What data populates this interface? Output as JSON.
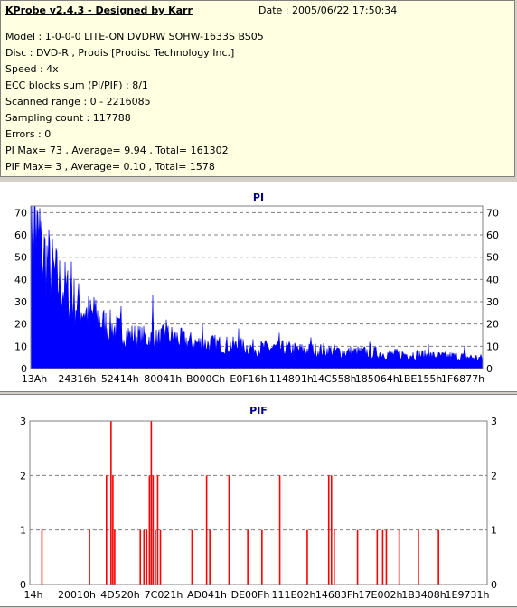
{
  "header": {
    "title": "KProbe v2.4.3 - Designed by Karr",
    "date": "Date : 2005/06/22 17:50:34"
  },
  "info_lines": [
    "Model : 1-0-0-0 LITE-ON DVDRW SOHW-1633S BS05",
    "Disc : DVD-R , Prodis [Prodisc Technology Inc.]",
    "Speed : 4x",
    "ECC blocks sum (PI/PIF) : 8/1",
    "Scanned range : 0 - 2216085",
    "Sampling count : 117788",
    "Errors : 0",
    "PI Max= 73 , Average= 9.94 , Total= 161302",
    "PIF Max= 3 , Average= 0.10 , Total= 1578"
  ],
  "colors": {
    "pi": "#0000ff",
    "pif": "#ff0000",
    "title": "#000080",
    "grid": "#808080"
  },
  "chart_data": [
    {
      "type": "area",
      "title": "PI",
      "ylim": [
        0,
        73
      ],
      "y_ticks": [
        0,
        10,
        20,
        30,
        40,
        50,
        60,
        70
      ],
      "x_tick_labels": [
        "13Ah",
        "24316h",
        "52414h",
        "80041h",
        "B000Ch",
        "E0F16h",
        "114891h",
        "14C558h",
        "185064h",
        "1BE155h",
        "1F6877h"
      ],
      "grid": true,
      "profile": [
        [
          0,
          62
        ],
        [
          1,
          68
        ],
        [
          2,
          58
        ],
        [
          3,
          55
        ],
        [
          4,
          50
        ],
        [
          5,
          46
        ],
        [
          6,
          42
        ],
        [
          7,
          40
        ],
        [
          8,
          37
        ],
        [
          9,
          34
        ],
        [
          10,
          32
        ],
        [
          11,
          30
        ],
        [
          12,
          28
        ],
        [
          13,
          26
        ],
        [
          14,
          25
        ],
        [
          15,
          24
        ],
        [
          16,
          22
        ],
        [
          17,
          21
        ],
        [
          18,
          20
        ],
        [
          19,
          19
        ],
        [
          20,
          18
        ],
        [
          22,
          16
        ],
        [
          25,
          15
        ],
        [
          28,
          14
        ],
        [
          30,
          16
        ],
        [
          32,
          15
        ],
        [
          35,
          13
        ],
        [
          38,
          12
        ],
        [
          40,
          12
        ],
        [
          45,
          11
        ],
        [
          50,
          10
        ],
        [
          55,
          10
        ],
        [
          60,
          9
        ],
        [
          65,
          9
        ],
        [
          70,
          8
        ],
        [
          75,
          8
        ],
        [
          80,
          7
        ],
        [
          85,
          7
        ],
        [
          90,
          6
        ],
        [
          95,
          6
        ],
        [
          100,
          5
        ]
      ],
      "spikes": [
        [
          1,
          73
        ],
        [
          2,
          72
        ],
        [
          9,
          48
        ],
        [
          14,
          32
        ],
        [
          20,
          28
        ],
        [
          27,
          33
        ],
        [
          30,
          22
        ],
        [
          38,
          20
        ],
        [
          46,
          18
        ],
        [
          55,
          16
        ],
        [
          62,
          14
        ],
        [
          75,
          12
        ],
        [
          88,
          11
        ],
        [
          96,
          10
        ]
      ]
    },
    {
      "type": "bar",
      "title": "PIF",
      "ylim": [
        0,
        3
      ],
      "y_ticks": [
        0,
        1,
        2,
        3
      ],
      "x_tick_labels": [
        "14h",
        "20010h",
        "4D520h",
        "7C021h",
        "AD041h",
        "DE00Fh",
        "111E02h",
        "14683Fh",
        "17E002h",
        "1B3408h",
        "1E9731h"
      ],
      "grid": true,
      "bars": [
        [
          2.5,
          1
        ],
        [
          12.9,
          1
        ],
        [
          16.6,
          2
        ],
        [
          17.6,
          3
        ],
        [
          18.0,
          2
        ],
        [
          18.4,
          1
        ],
        [
          24.0,
          1
        ],
        [
          24.8,
          1
        ],
        [
          25.4,
          1
        ],
        [
          26.0,
          2
        ],
        [
          26.4,
          3
        ],
        [
          26.8,
          2
        ],
        [
          27.3,
          1
        ],
        [
          27.8,
          2
        ],
        [
          28.4,
          1
        ],
        [
          35.3,
          1
        ],
        [
          38.5,
          2
        ],
        [
          39.2,
          1
        ],
        [
          43.4,
          2
        ],
        [
          47.5,
          1
        ],
        [
          50.6,
          1
        ],
        [
          54.5,
          2
        ],
        [
          60.5,
          1
        ],
        [
          65.2,
          2
        ],
        [
          65.8,
          2
        ],
        [
          66.4,
          1
        ],
        [
          71.5,
          1
        ],
        [
          75.8,
          1
        ],
        [
          77.0,
          1
        ],
        [
          77.8,
          1
        ],
        [
          80.6,
          1
        ],
        [
          84.8,
          1
        ],
        [
          89.2,
          1
        ]
      ]
    }
  ]
}
